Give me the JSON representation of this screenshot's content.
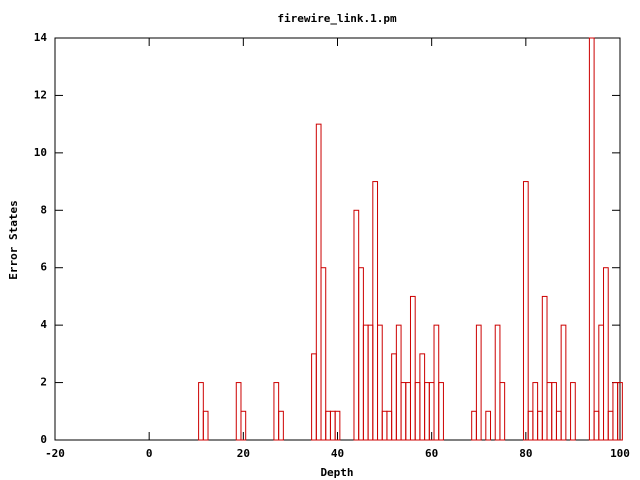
{
  "chart_data": {
    "type": "bar",
    "title": "firewire_link.1.pm",
    "x_label": "Depth",
    "y_label": "Error States",
    "color": "#cc0000",
    "x": [
      11,
      12,
      19,
      20,
      27,
      28,
      35,
      36,
      37,
      38,
      39,
      40,
      44,
      45,
      46,
      47,
      48,
      49,
      50,
      51,
      52,
      53,
      54,
      55,
      56,
      57,
      58,
      59,
      60,
      61,
      62,
      69,
      70,
      72,
      74,
      75,
      80,
      81,
      82,
      83,
      84,
      85,
      86,
      87,
      88,
      90,
      94,
      95,
      96,
      97,
      98,
      99,
      100
    ],
    "values": [
      2,
      1,
      2,
      1,
      2,
      1,
      3,
      11,
      6,
      1,
      1,
      1,
      8,
      6,
      4,
      4,
      9,
      4,
      1,
      1,
      3,
      4,
      2,
      2,
      5,
      2,
      3,
      2,
      2,
      4,
      2,
      1,
      4,
      1,
      4,
      2,
      9,
      1,
      2,
      1,
      5,
      2,
      2,
      1,
      4,
      2,
      14,
      1,
      4,
      6,
      1,
      2,
      2
    ],
    "xlim": [
      -20,
      100
    ],
    "xticks": [
      -20,
      0,
      20,
      40,
      60,
      80,
      100
    ],
    "ylim": [
      0,
      14
    ],
    "yticks": [
      0,
      2,
      4,
      6,
      8,
      10,
      12,
      14
    ]
  }
}
